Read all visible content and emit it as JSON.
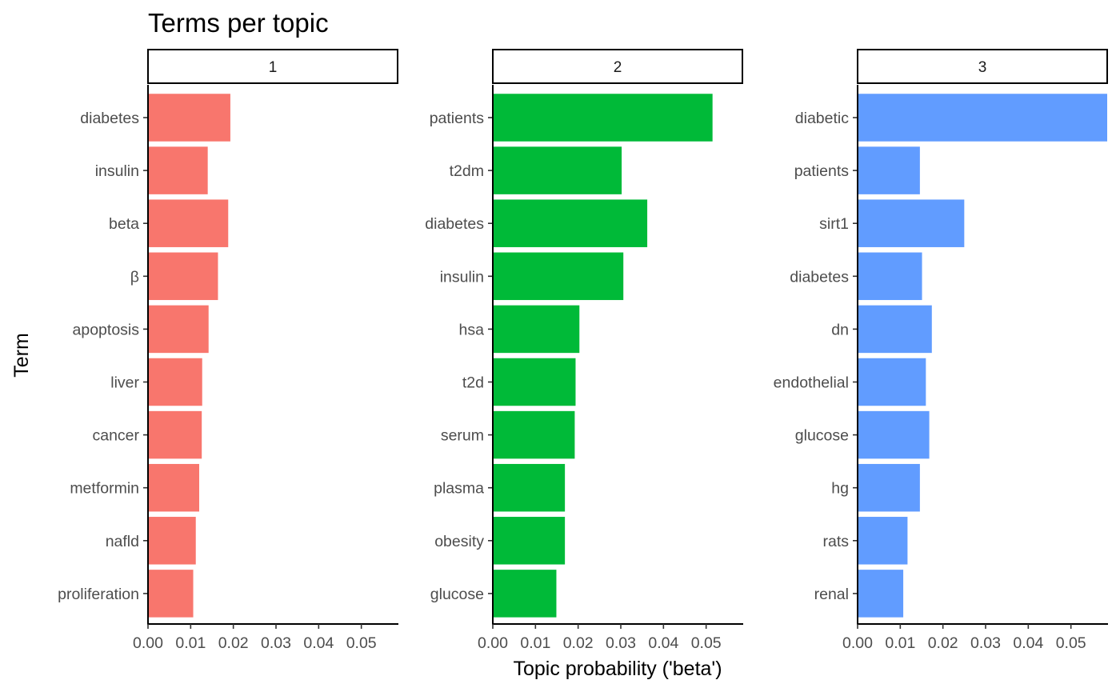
{
  "chart_data": {
    "type": "bar",
    "orientation": "horizontal",
    "title": "Terms per topic",
    "xlabel": "Topic probability ('beta')",
    "ylabel": "Term",
    "xlim": [
      0,
      0.0585
    ],
    "x_ticks": [
      "0.00",
      "0.01",
      "0.02",
      "0.03",
      "0.04",
      "0.05"
    ],
    "x_tick_values": [
      0,
      0.01,
      0.02,
      0.03,
      0.04,
      0.05
    ],
    "grid": false,
    "legend": "none",
    "facets": [
      {
        "label": "1",
        "color": "#F8766D",
        "terms": [
          "diabetes",
          "insulin",
          "beta",
          "β",
          "apoptosis",
          "liver",
          "cancer",
          "metformin",
          "nafld",
          "proliferation"
        ],
        "values": [
          0.0193,
          0.014,
          0.0188,
          0.0164,
          0.0142,
          0.0127,
          0.0126,
          0.012,
          0.0112,
          0.0106
        ]
      },
      {
        "label": "2",
        "color": "#00BA38",
        "terms": [
          "patients",
          "t2dm",
          "diabetes",
          "insulin",
          "hsa",
          "t2d",
          "serum",
          "plasma",
          "obesity",
          "glucose"
        ],
        "values": [
          0.0515,
          0.0302,
          0.0362,
          0.0306,
          0.0203,
          0.0194,
          0.0192,
          0.0169,
          0.0169,
          0.0149
        ]
      },
      {
        "label": "3",
        "color": "#619CFF",
        "terms": [
          "diabetic",
          "patients",
          "sirt1",
          "diabetes",
          "dn",
          "endothelial",
          "glucose",
          "hg",
          "rats",
          "renal"
        ],
        "values": [
          0.059,
          0.0146,
          0.025,
          0.0151,
          0.0174,
          0.016,
          0.0168,
          0.0146,
          0.0117,
          0.0107
        ]
      }
    ]
  }
}
